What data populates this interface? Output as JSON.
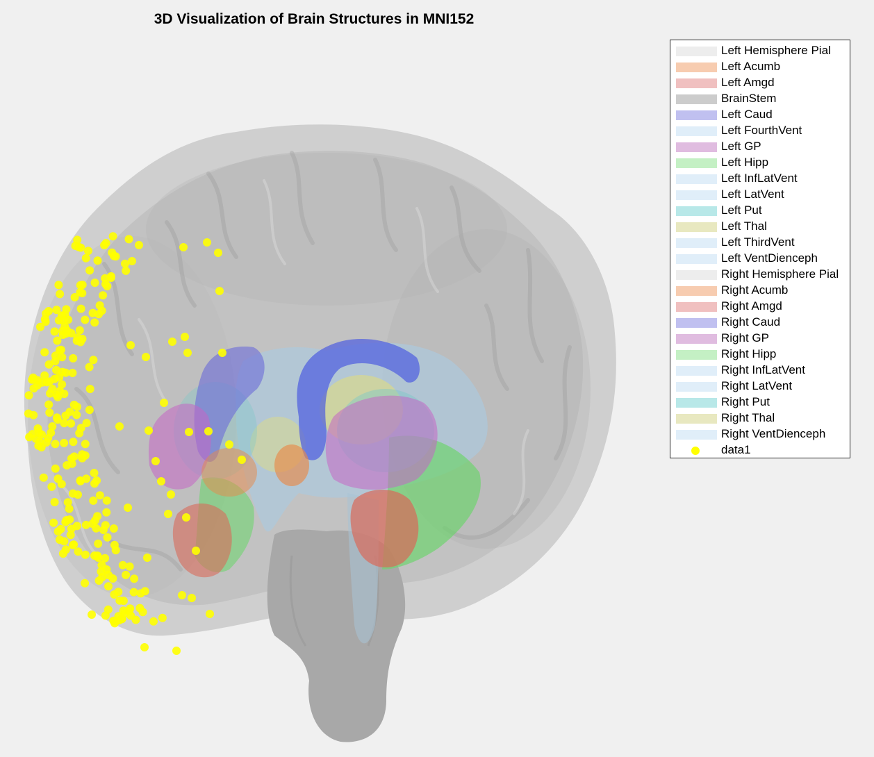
{
  "figure": {
    "title": "3D Visualization of Brain Structures in MNI152"
  },
  "colors": {
    "background": "#f0f0f0",
    "cortex": "#b4b4b4",
    "brainstem": "#a8a8a8",
    "electrodes": "#ffff00"
  },
  "legend": {
    "items": [
      {
        "label": "Left Hemisphere Pial",
        "color": "#ededed",
        "kind": "patch"
      },
      {
        "label": "Left Acumb",
        "color": "#f7ccb0",
        "kind": "patch"
      },
      {
        "label": "Left Amgd",
        "color": "#f0c0c0",
        "kind": "patch"
      },
      {
        "label": "BrainStem",
        "color": "#cccccc",
        "kind": "patch"
      },
      {
        "label": "Left Caud",
        "color": "#c0c0f0",
        "kind": "patch"
      },
      {
        "label": "Left FourthVent",
        "color": "#e0eef9",
        "kind": "patch"
      },
      {
        "label": "Left GP",
        "color": "#e0bce0",
        "kind": "patch"
      },
      {
        "label": "Left Hipp",
        "color": "#c4f0c4",
        "kind": "patch"
      },
      {
        "label": "Left InfLatVent",
        "color": "#e0eef9",
        "kind": "patch"
      },
      {
        "label": "Left LatVent",
        "color": "#e0eef9",
        "kind": "patch"
      },
      {
        "label": "Left Put",
        "color": "#b8e8e8",
        "kind": "patch"
      },
      {
        "label": "Left Thal",
        "color": "#e8e8c0",
        "kind": "patch"
      },
      {
        "label": "Left ThirdVent",
        "color": "#e0eef9",
        "kind": "patch"
      },
      {
        "label": "Left VentDienceph",
        "color": "#e0eef9",
        "kind": "patch"
      },
      {
        "label": "Right Hemisphere Pial",
        "color": "#ededed",
        "kind": "patch"
      },
      {
        "label": "Right Acumb",
        "color": "#f7ccb0",
        "kind": "patch"
      },
      {
        "label": "Right Amgd",
        "color": "#f0c0c0",
        "kind": "patch"
      },
      {
        "label": "Right Caud",
        "color": "#c0c0f0",
        "kind": "patch"
      },
      {
        "label": "Right GP",
        "color": "#e0bce0",
        "kind": "patch"
      },
      {
        "label": "Right Hipp",
        "color": "#c4f0c4",
        "kind": "patch"
      },
      {
        "label": "Right InfLatVent",
        "color": "#e0eef9",
        "kind": "patch"
      },
      {
        "label": "Right LatVent",
        "color": "#e0eef9",
        "kind": "patch"
      },
      {
        "label": "Right Put",
        "color": "#b8e8e8",
        "kind": "patch"
      },
      {
        "label": "Right Thal",
        "color": "#e8e8c0",
        "kind": "patch"
      },
      {
        "label": "Right VentDienceph",
        "color": "#e0eef9",
        "kind": "patch"
      },
      {
        "label": "data1",
        "color": "#ffff00",
        "kind": "marker"
      }
    ]
  }
}
